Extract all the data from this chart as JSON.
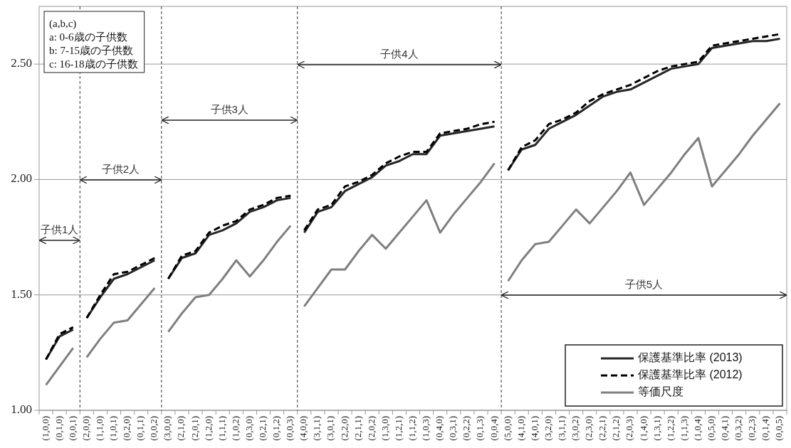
{
  "chart_data": {
    "type": "line",
    "categories": [
      "(1,0,0)",
      "(0,1,0)",
      "(0,0,1)",
      "(2,0,0)",
      "(1,1,0)",
      "(1,0,1)",
      "(0,2,0)",
      "(0,1,1)",
      "(0,0,2)",
      "(3,0,0)",
      "(2,1,0)",
      "(2,0,1)",
      "(1,2,0)",
      "(1,1,1)",
      "(1,0,2)",
      "(0,3,0)",
      "(0,2,1)",
      "(0,1,2)",
      "(0,0,3)",
      "(4,0,0)",
      "(3,1,1)",
      "(3,0,1)",
      "(2,2,0)",
      "(2,1,1)",
      "(2,0,2)",
      "(1,3,0)",
      "(1,2,1)",
      "(1,1,2)",
      "(1,0,3)",
      "(0,4,0)",
      "(0,3,1)",
      "(0,2,2)",
      "(0,1,3)",
      "(0,0,4)",
      "(5,0,0)",
      "(4,1,0)",
      "(4,0,1)",
      "(3,2,0)",
      "(3,1,1)",
      "(3,0,2)",
      "(2,3,0)",
      "(2,2,1)",
      "(2,1,2)",
      "(2,0,3)",
      "(1,4,0)",
      "(1,3,1)",
      "(1,2,2)",
      "(1,1,3)",
      "(1,0,4)",
      "(0,5,0)",
      "(0,4,1)",
      "(0,3,2)",
      "(0,2,3)",
      "(0,1,4)",
      "(0,0,5)"
    ],
    "series": [
      {
        "name": "保護基準比率 (2013)",
        "color": "#262626",
        "line_style": "solid",
        "values": [
          1.22,
          1.32,
          1.35,
          1.4,
          1.49,
          1.57,
          1.59,
          1.62,
          1.65,
          1.57,
          1.66,
          1.68,
          1.76,
          1.78,
          1.81,
          1.86,
          1.88,
          1.91,
          1.92,
          1.77,
          1.86,
          1.88,
          1.95,
          1.98,
          2.01,
          2.06,
          2.08,
          2.11,
          2.11,
          2.19,
          2.2,
          2.21,
          2.22,
          2.23,
          2.04,
          2.13,
          2.15,
          2.22,
          2.25,
          2.28,
          2.32,
          2.36,
          2.38,
          2.39,
          2.42,
          2.45,
          2.48,
          2.49,
          2.5,
          2.57,
          2.58,
          2.59,
          2.6,
          2.6,
          2.61
        ]
      },
      {
        "name": "保護基準比率 (2012)",
        "color": "#000000",
        "line_style": "dashed",
        "values": [
          1.22,
          1.33,
          1.36,
          1.4,
          1.5,
          1.59,
          1.6,
          1.63,
          1.66,
          1.57,
          1.67,
          1.69,
          1.77,
          1.8,
          1.82,
          1.87,
          1.89,
          1.92,
          1.93,
          1.78,
          1.87,
          1.89,
          1.97,
          1.99,
          2.02,
          2.07,
          2.1,
          2.12,
          2.12,
          2.2,
          2.21,
          2.22,
          2.24,
          2.25,
          2.04,
          2.14,
          2.17,
          2.24,
          2.26,
          2.29,
          2.34,
          2.37,
          2.39,
          2.41,
          2.44,
          2.47,
          2.49,
          2.5,
          2.51,
          2.58,
          2.59,
          2.6,
          2.61,
          2.62,
          2.63
        ]
      },
      {
        "name": "等価尺度",
        "color": "#7f7f7f",
        "line_style": "solid",
        "values": [
          1.11,
          1.19,
          1.27,
          1.23,
          1.31,
          1.38,
          1.39,
          1.46,
          1.53,
          1.34,
          1.42,
          1.49,
          1.5,
          1.57,
          1.65,
          1.58,
          1.65,
          1.73,
          1.8,
          1.45,
          1.53,
          1.61,
          1.61,
          1.69,
          1.76,
          1.7,
          1.77,
          1.84,
          1.91,
          1.77,
          1.85,
          1.92,
          1.99,
          2.07,
          1.56,
          1.65,
          1.72,
          1.73,
          1.8,
          1.87,
          1.81,
          1.88,
          1.95,
          2.03,
          1.89,
          1.96,
          2.03,
          2.11,
          2.18,
          1.97,
          2.04,
          2.11,
          2.19,
          2.26,
          2.33
        ]
      }
    ],
    "ylim": [
      1,
      2.75
    ],
    "yticks": [
      {
        "value": 1,
        "label": "1.00"
      },
      {
        "value": 1.5,
        "label": "1.50"
      },
      {
        "value": 2,
        "label": "2.00"
      },
      {
        "value": 2.5,
        "label": "2.50"
      }
    ],
    "grid": "y",
    "legend": "bottom right",
    "annotations": [
      "(a,b,c)",
      "a: 0-6歳の子供数",
      "b: 7-15歳の子供数",
      "c: 16-18歳の子供数",
      "子供1人",
      "子供2人",
      "子供3人",
      "子供4人",
      "子供5人"
    ]
  }
}
